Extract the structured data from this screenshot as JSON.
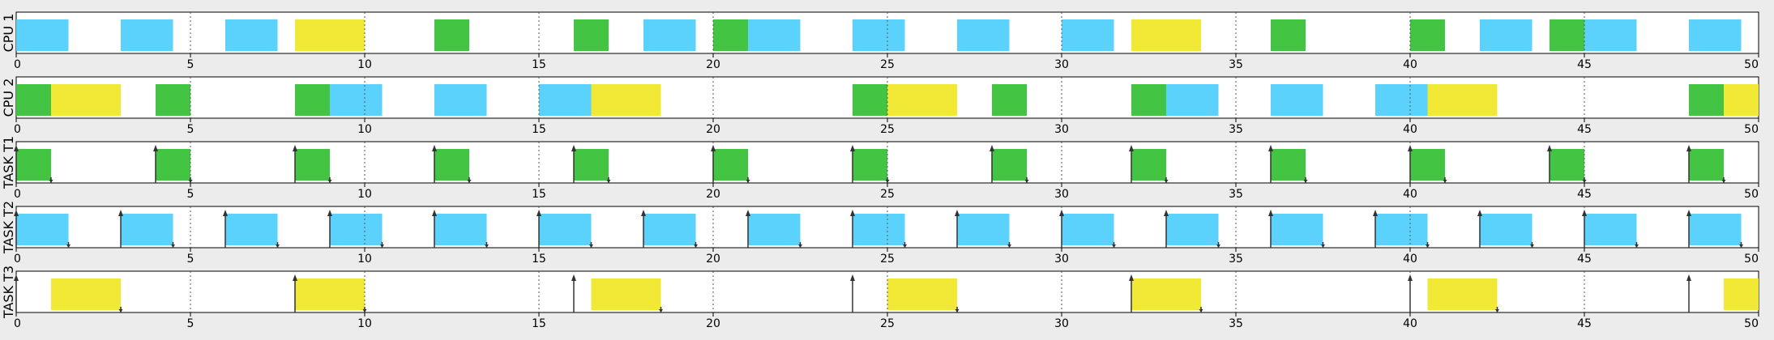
{
  "chart_data": {
    "type": "gantt",
    "x_range": [
      0,
      50
    ],
    "x_ticks": [
      0,
      5,
      10,
      15,
      20,
      25,
      30,
      35,
      40,
      45,
      50
    ],
    "grid": "dotted vertical lines at major ticks",
    "colors": {
      "T1": "#43c443",
      "T2": "#5bd2fb",
      "T3": "#f2e936"
    },
    "rows": [
      {
        "label": "CPU 1",
        "intervals": [
          {
            "start": 0,
            "end": 1.5,
            "task": "T2"
          },
          {
            "start": 3,
            "end": 4.5,
            "task": "T2"
          },
          {
            "start": 6,
            "end": 7.5,
            "task": "T2"
          },
          {
            "start": 8,
            "end": 10,
            "task": "T3"
          },
          {
            "start": 12,
            "end": 13,
            "task": "T1"
          },
          {
            "start": 16,
            "end": 17,
            "task": "T1"
          },
          {
            "start": 18,
            "end": 19.5,
            "task": "T2"
          },
          {
            "start": 20,
            "end": 21,
            "task": "T1"
          },
          {
            "start": 21,
            "end": 22.5,
            "task": "T2"
          },
          {
            "start": 24,
            "end": 25.5,
            "task": "T2"
          },
          {
            "start": 27,
            "end": 28.5,
            "task": "T2"
          },
          {
            "start": 30,
            "end": 31.5,
            "task": "T2"
          },
          {
            "start": 32,
            "end": 34,
            "task": "T3"
          },
          {
            "start": 36,
            "end": 37,
            "task": "T1"
          },
          {
            "start": 40,
            "end": 41,
            "task": "T1"
          },
          {
            "start": 42,
            "end": 43.5,
            "task": "T2"
          },
          {
            "start": 44,
            "end": 45,
            "task": "T1"
          },
          {
            "start": 45,
            "end": 46.5,
            "task": "T2"
          },
          {
            "start": 48,
            "end": 49.5,
            "task": "T2"
          }
        ],
        "arrivals": [],
        "deadlines": []
      },
      {
        "label": "CPU 2",
        "intervals": [
          {
            "start": 0,
            "end": 1,
            "task": "T1"
          },
          {
            "start": 1,
            "end": 3,
            "task": "T3"
          },
          {
            "start": 4,
            "end": 5,
            "task": "T1"
          },
          {
            "start": 8,
            "end": 9,
            "task": "T1"
          },
          {
            "start": 9,
            "end": 10.5,
            "task": "T2"
          },
          {
            "start": 12,
            "end": 13.5,
            "task": "T2"
          },
          {
            "start": 15,
            "end": 16.5,
            "task": "T2"
          },
          {
            "start": 16.5,
            "end": 18.5,
            "task": "T3"
          },
          {
            "start": 24,
            "end": 25,
            "task": "T1"
          },
          {
            "start": 25,
            "end": 27,
            "task": "T3"
          },
          {
            "start": 28,
            "end": 29,
            "task": "T1"
          },
          {
            "start": 32,
            "end": 33,
            "task": "T1"
          },
          {
            "start": 33,
            "end": 34.5,
            "task": "T2"
          },
          {
            "start": 36,
            "end": 37.5,
            "task": "T2"
          },
          {
            "start": 39,
            "end": 40.5,
            "task": "T2"
          },
          {
            "start": 40.5,
            "end": 42.5,
            "task": "T3"
          },
          {
            "start": 48,
            "end": 49,
            "task": "T1"
          },
          {
            "start": 49,
            "end": 50,
            "task": "T3"
          }
        ],
        "arrivals": [],
        "deadlines": []
      },
      {
        "label": "TASK T1",
        "intervals": [
          {
            "start": 0,
            "end": 1,
            "task": "T1"
          },
          {
            "start": 4,
            "end": 5,
            "task": "T1"
          },
          {
            "start": 8,
            "end": 9,
            "task": "T1"
          },
          {
            "start": 12,
            "end": 13,
            "task": "T1"
          },
          {
            "start": 16,
            "end": 17,
            "task": "T1"
          },
          {
            "start": 20,
            "end": 21,
            "task": "T1"
          },
          {
            "start": 24,
            "end": 25,
            "task": "T1"
          },
          {
            "start": 28,
            "end": 29,
            "task": "T1"
          },
          {
            "start": 32,
            "end": 33,
            "task": "T1"
          },
          {
            "start": 36,
            "end": 37,
            "task": "T1"
          },
          {
            "start": 40,
            "end": 41,
            "task": "T1"
          },
          {
            "start": 44,
            "end": 45,
            "task": "T1"
          },
          {
            "start": 48,
            "end": 49,
            "task": "T1"
          }
        ],
        "arrivals": [
          0,
          4,
          8,
          12,
          16,
          20,
          24,
          28,
          32,
          36,
          40,
          44,
          48
        ],
        "deadlines": [
          1,
          5,
          9,
          13,
          17,
          21,
          25,
          29,
          33,
          37,
          41,
          45,
          49
        ]
      },
      {
        "label": "TASK T2",
        "intervals": [
          {
            "start": 0,
            "end": 1.5,
            "task": "T2"
          },
          {
            "start": 3,
            "end": 4.5,
            "task": "T2"
          },
          {
            "start": 6,
            "end": 7.5,
            "task": "T2"
          },
          {
            "start": 9,
            "end": 10.5,
            "task": "T2"
          },
          {
            "start": 12,
            "end": 13.5,
            "task": "T2"
          },
          {
            "start": 15,
            "end": 16.5,
            "task": "T2"
          },
          {
            "start": 18,
            "end": 19.5,
            "task": "T2"
          },
          {
            "start": 21,
            "end": 22.5,
            "task": "T2"
          },
          {
            "start": 24,
            "end": 25.5,
            "task": "T2"
          },
          {
            "start": 27,
            "end": 28.5,
            "task": "T2"
          },
          {
            "start": 30,
            "end": 31.5,
            "task": "T2"
          },
          {
            "start": 33,
            "end": 34.5,
            "task": "T2"
          },
          {
            "start": 36,
            "end": 37.5,
            "task": "T2"
          },
          {
            "start": 39,
            "end": 40.5,
            "task": "T2"
          },
          {
            "start": 42,
            "end": 43.5,
            "task": "T2"
          },
          {
            "start": 45,
            "end": 46.5,
            "task": "T2"
          },
          {
            "start": 48,
            "end": 49.5,
            "task": "T2"
          }
        ],
        "arrivals": [
          0,
          3,
          6,
          9,
          12,
          15,
          18,
          21,
          24,
          27,
          30,
          33,
          36,
          39,
          42,
          45,
          48
        ],
        "deadlines": [
          1.5,
          4.5,
          7.5,
          10.5,
          13.5,
          16.5,
          19.5,
          22.5,
          25.5,
          28.5,
          31.5,
          34.5,
          37.5,
          40.5,
          43.5,
          46.5,
          49.5
        ]
      },
      {
        "label": "TASK T3",
        "intervals": [
          {
            "start": 1,
            "end": 3,
            "task": "T3"
          },
          {
            "start": 8,
            "end": 10,
            "task": "T3"
          },
          {
            "start": 16.5,
            "end": 18.5,
            "task": "T3"
          },
          {
            "start": 25,
            "end": 27,
            "task": "T3"
          },
          {
            "start": 32,
            "end": 34,
            "task": "T3"
          },
          {
            "start": 40.5,
            "end": 42.5,
            "task": "T3"
          },
          {
            "start": 49,
            "end": 50,
            "task": "T3"
          }
        ],
        "arrivals": [
          0,
          8,
          16,
          24,
          32,
          40,
          48
        ],
        "deadlines": [
          3,
          10,
          18.5,
          27,
          34,
          42.5
        ]
      }
    ]
  }
}
